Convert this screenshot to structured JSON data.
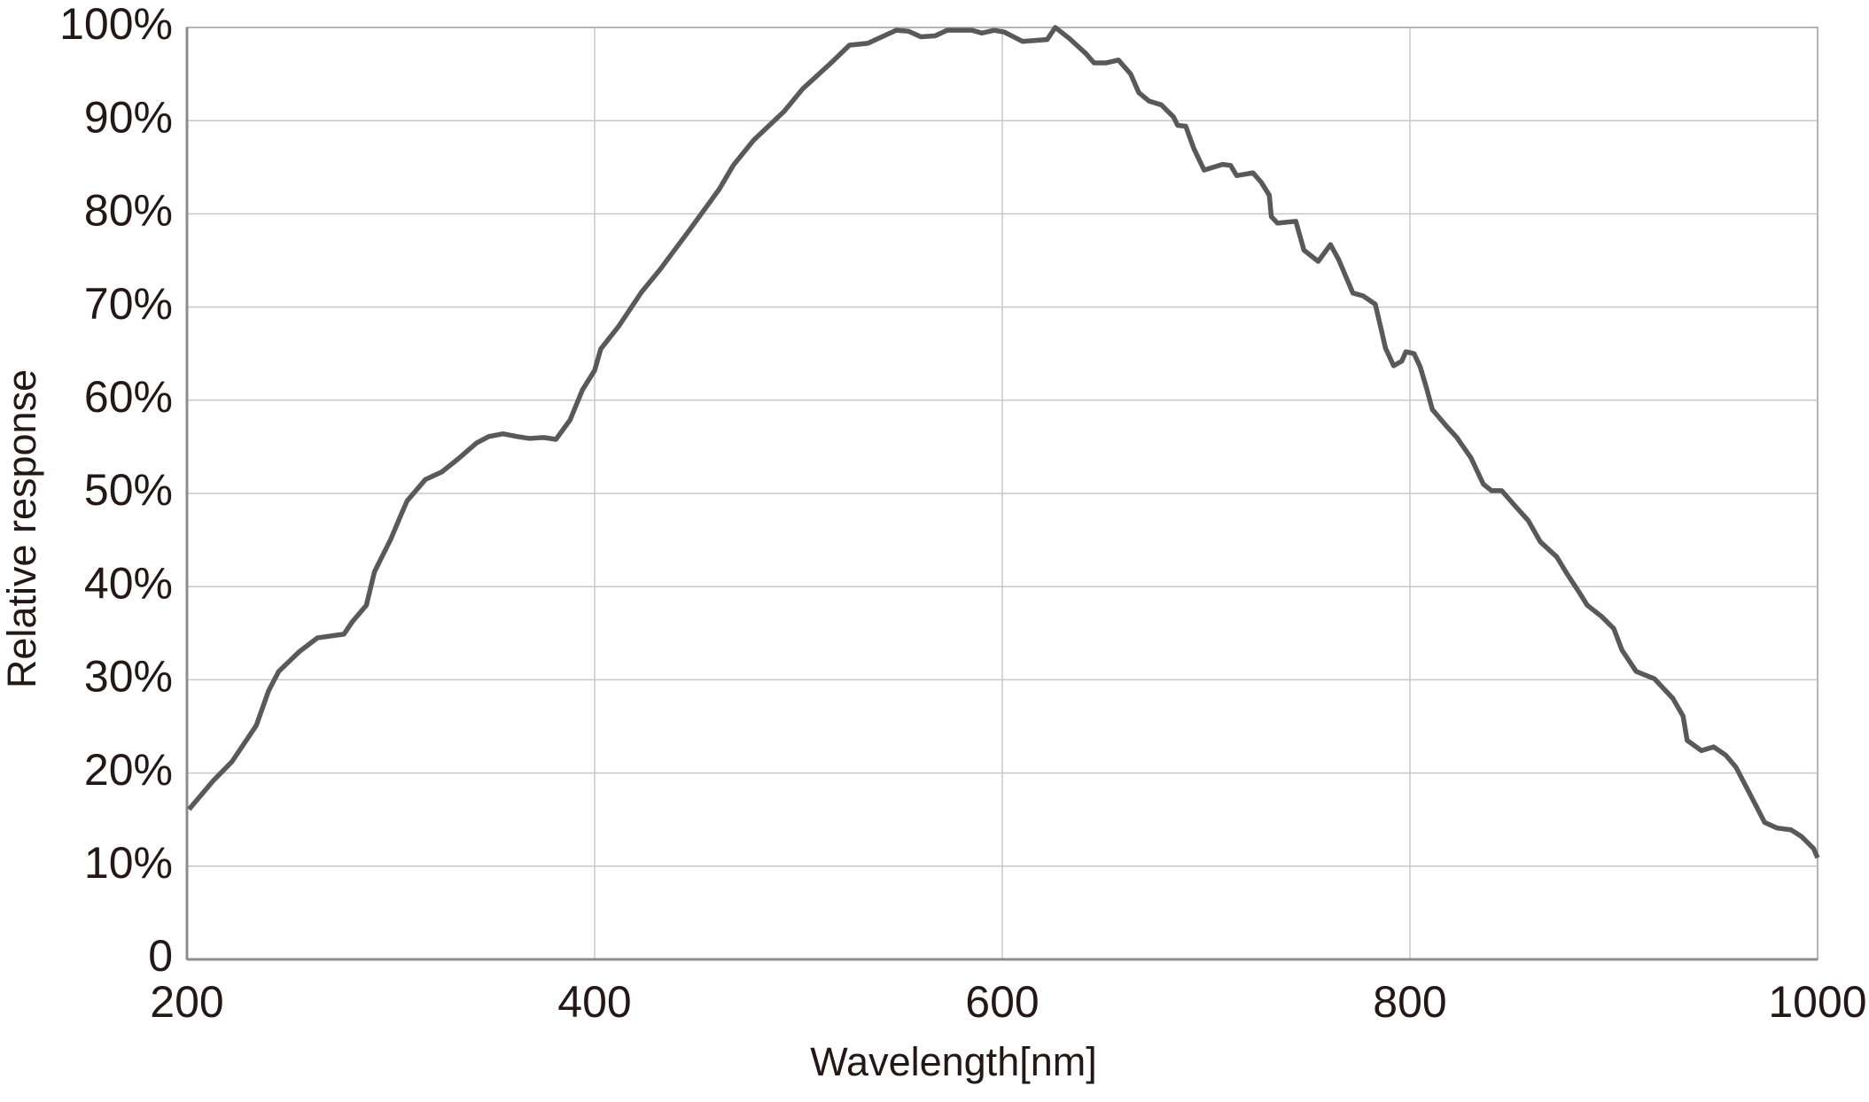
{
  "chart_data": {
    "type": "line",
    "xlabel": "Wavelength[nm]",
    "ylabel": "Relative response",
    "x": [
      201,
      213,
      222,
      234,
      240,
      245,
      255,
      264,
      277,
      281,
      288,
      292,
      300,
      305,
      308,
      317,
      325,
      333,
      342,
      348,
      355,
      362,
      368,
      375,
      381,
      388,
      394,
      400,
      403,
      412,
      423,
      432,
      447,
      461,
      468,
      478,
      493,
      502,
      516,
      525,
      534,
      543,
      548,
      554,
      560,
      567,
      573,
      585,
      590,
      596,
      601,
      610,
      622,
      626,
      633,
      641,
      645,
      651,
      657,
      663,
      667,
      672,
      678,
      684,
      686,
      690,
      694,
      699,
      708,
      712,
      715,
      723,
      727,
      731,
      732,
      735,
      744,
      748,
      755,
      761,
      765,
      772,
      777,
      783,
      786,
      788,
      792,
      796,
      798,
      802,
      805,
      808,
      811,
      818,
      823,
      830,
      836,
      840,
      845,
      851,
      858,
      864,
      872,
      877,
      883,
      887,
      894,
      900,
      904,
      911,
      920,
      929,
      934,
      936,
      943,
      949,
      955,
      960,
      965,
      970,
      974,
      980,
      987,
      992,
      998,
      1000
    ],
    "values": [
      16.1,
      19.2,
      21.2,
      25.1,
      28.8,
      30.9,
      33,
      34.5,
      34.9,
      36.2,
      38,
      41.6,
      45.1,
      47.7,
      49.2,
      51.5,
      52.3,
      53.7,
      55.4,
      56.1,
      56.4,
      56.1,
      55.9,
      56,
      55.8,
      57.9,
      61.1,
      63.2,
      65.5,
      68,
      71.6,
      74,
      78.4,
      82.6,
      85.2,
      87.9,
      91,
      93.4,
      96.2,
      98.1,
      98.3,
      99.2,
      99.7,
      99.6,
      99,
      99.1,
      99.7,
      99.7,
      99.4,
      99.7,
      99.5,
      98.5,
      98.7,
      100,
      98.8,
      97.2,
      96.2,
      96.2,
      96.5,
      95,
      93,
      92.1,
      91.7,
      90.4,
      89.5,
      89.4,
      87,
      84.7,
      85.3,
      85.2,
      84.1,
      84.4,
      83.4,
      82,
      79.7,
      79,
      79.2,
      76.1,
      74.9,
      76.7,
      75.1,
      71.5,
      71.2,
      70.3,
      67.5,
      65.6,
      63.7,
      64.2,
      65.2,
      65,
      63.6,
      61.4,
      59,
      57.2,
      56,
      53.8,
      51,
      50.3,
      50.3,
      48.8,
      47.1,
      44.8,
      43.2,
      41.4,
      39.4,
      38,
      36.8,
      35.5,
      33.2,
      30.9,
      30.1,
      28,
      26.1,
      23.5,
      22.4,
      22.8,
      21.9,
      20.6,
      18.5,
      16.4,
      14.7,
      14.1,
      13.9,
      13.2,
      11.9,
      10.9
    ],
    "color": "#595959",
    "xlim": [
      200,
      1000
    ],
    "xticks": [
      200,
      400,
      600,
      800,
      1000
    ],
    "ylim": [
      0,
      100
    ],
    "yticks": [
      0,
      {
        "value": 10,
        "label": "10%"
      },
      {
        "value": 20,
        "label": "20%"
      },
      {
        "value": 30,
        "label": "30%"
      },
      {
        "value": 40,
        "label": "40%"
      },
      {
        "value": 50,
        "label": "50%"
      },
      {
        "value": 60,
        "label": "60%"
      },
      {
        "value": 70,
        "label": "70%"
      },
      {
        "value": 80,
        "label": "80%"
      },
      {
        "value": 90,
        "label": "90%"
      },
      {
        "value": 100,
        "label": "100%"
      }
    ],
    "grid": true
  }
}
